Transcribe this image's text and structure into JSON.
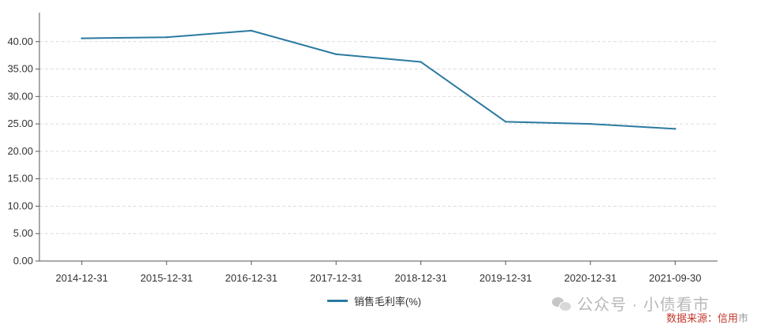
{
  "chart_data": {
    "type": "line",
    "title": "",
    "xlabel": "",
    "ylabel": "",
    "categories": [
      "2014-12-31",
      "2015-12-31",
      "2016-12-31",
      "2017-12-31",
      "2018-12-31",
      "2019-12-31",
      "2020-12-31",
      "2021-09-30"
    ],
    "series": [
      {
        "name": "销售毛利率(%)",
        "values": [
          40.6,
          40.8,
          42.0,
          37.7,
          36.3,
          25.4,
          25.0,
          24.1
        ]
      }
    ],
    "ylim": [
      0,
      45
    ],
    "yticks": [
      "0.00",
      "5.00",
      "10.00",
      "15.00",
      "20.00",
      "25.00",
      "30.00",
      "35.00",
      "40.00"
    ],
    "grid": "horizontal dashed",
    "legend_position": "bottom-center",
    "line_color": "#2b7aa0"
  },
  "legend": {
    "label": "销售毛利率(%)"
  },
  "watermark": {
    "text": "公众号 · 小债看市",
    "icon": "wechat-icon"
  },
  "source_note": {
    "text": "数据来源：信用",
    "tail": "市"
  }
}
